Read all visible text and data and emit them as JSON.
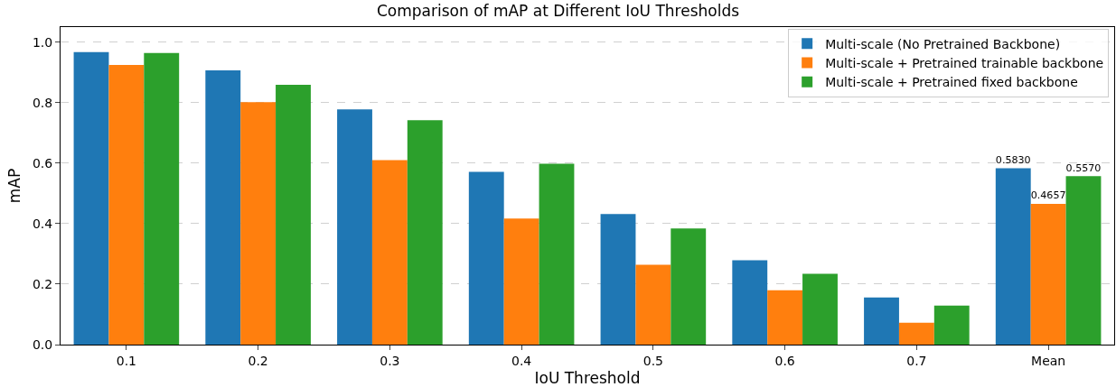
{
  "chart_data": {
    "type": "bar",
    "title": "Comparison of mAP at Different IoU Thresholds",
    "xlabel": "IoU Threshold",
    "ylabel": "mAP",
    "categories": [
      "0.1",
      "0.2",
      "0.3",
      "0.4",
      "0.5",
      "0.6",
      "0.7",
      "Mean"
    ],
    "series": [
      {
        "name": "Multi-scale (No Pretrained Backbone)",
        "color": "#1f77b4",
        "values": [
          0.967,
          0.907,
          0.778,
          0.571,
          0.432,
          0.279,
          0.156,
          0.583
        ],
        "value_labels": [
          null,
          null,
          null,
          null,
          null,
          null,
          null,
          "0.5830"
        ]
      },
      {
        "name": "Multi-scale + Pretrained trainable backbone",
        "color": "#ff7f0e",
        "values": [
          0.925,
          0.802,
          0.61,
          0.417,
          0.264,
          0.18,
          0.072,
          0.4657
        ],
        "value_labels": [
          null,
          null,
          null,
          null,
          null,
          null,
          null,
          "0.4657"
        ]
      },
      {
        "name": "Multi-scale + Pretrained fixed backbone",
        "color": "#2ca02c",
        "values": [
          0.964,
          0.859,
          0.742,
          0.598,
          0.384,
          0.234,
          0.129,
          0.557
        ],
        "value_labels": [
          null,
          null,
          null,
          null,
          null,
          null,
          null,
          "0.5570"
        ]
      }
    ],
    "ylim": [
      0,
      1.05
    ],
    "yticks": [
      {
        "value": 0,
        "label": "0.0"
      },
      {
        "value": 0.2,
        "label": "0.2"
      },
      {
        "value": 0.4,
        "label": "0.4"
      },
      {
        "value": 0.6,
        "label": "0.6"
      },
      {
        "value": 0.8,
        "label": "0.8"
      },
      {
        "value": 1,
        "label": "1.0"
      }
    ],
    "grid": "y",
    "legend": "top right"
  }
}
